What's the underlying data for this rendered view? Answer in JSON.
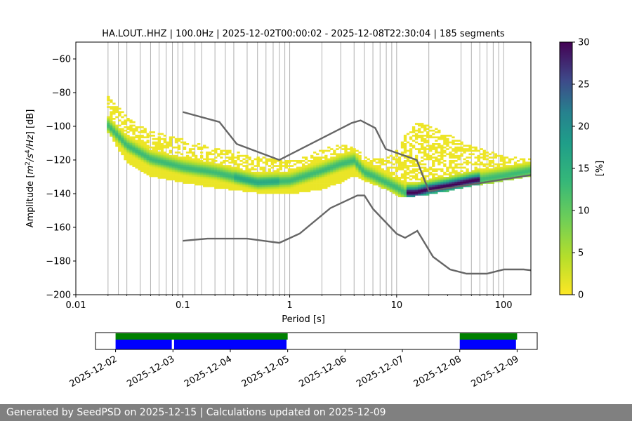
{
  "chart_data": {
    "type": "heatmap",
    "title": "HA.LOUT..HHZ | 100.0Hz | 2025-12-02T00:00:02 - 2025-12-08T22:30:04 | 185 segments",
    "xlabel": "Period [s]",
    "ylabel": "Amplitude [$m^2/s^4/Hz$] [dB]",
    "ylabel_parts": {
      "pre": "Amplitude [",
      "m": "m",
      "m_sup": "2",
      "s": "/s",
      "s_sup": "4",
      "hz": "/Hz",
      "post": "] [dB]"
    },
    "x_scale": "log",
    "xlim": [
      0.01,
      180
    ],
    "ylim": [
      -200,
      -50
    ],
    "x_tick_values": [
      0.01,
      0.1,
      1,
      10,
      100
    ],
    "x_tick_labels": [
      "0.01",
      "0.1",
      "1",
      "10",
      "100"
    ],
    "y_tick_values": [
      -200,
      -180,
      -160,
      -140,
      -120,
      -100,
      -80,
      -60
    ],
    "y_tick_labels": [
      "−200",
      "−180",
      "−160",
      "−140",
      "−120",
      "−100",
      "−80",
      "−60"
    ],
    "grid_periods": [
      0.02,
      0.025,
      0.03,
      0.04,
      0.05,
      0.06,
      0.07,
      0.08,
      0.09,
      0.1,
      0.13,
      0.15,
      0.2,
      0.25,
      0.3,
      0.4,
      0.5,
      0.6,
      0.7,
      0.8,
      0.9,
      1,
      2,
      3,
      4,
      5,
      6,
      7,
      8,
      9,
      10,
      20,
      40,
      50,
      60,
      70,
      80,
      90,
      100
    ],
    "colorbar": {
      "label": "[%]",
      "range": [
        0,
        30
      ],
      "ticks": [
        0,
        5,
        10,
        15,
        20,
        25,
        30
      ],
      "colormap": "viridis_r"
    },
    "band": {
      "period": [
        0.02,
        0.03,
        0.05,
        0.1,
        0.2,
        0.5,
        1,
        2,
        3,
        4,
        5,
        6,
        8,
        10,
        12,
        15,
        20,
        30,
        50,
        100,
        180
      ],
      "mode_db": [
        -100,
        -112,
        -120,
        -125,
        -128,
        -134,
        -133,
        -127,
        -123,
        -121,
        -128,
        -130,
        -134,
        -137,
        -140,
        -140,
        -138,
        -136,
        -133,
        -130,
        -127
      ],
      "lower_db": [
        -104,
        -122,
        -130,
        -134,
        -137,
        -140,
        -141,
        -138,
        -134,
        -130,
        -133,
        -135,
        -138,
        -142,
        -143,
        -142,
        -141,
        -139,
        -136,
        -133,
        -130
      ],
      "upper_db": [
        -82,
        -95,
        -103,
        -108,
        -113,
        -118,
        -121,
        -114,
        -110,
        -113,
        -118,
        -120,
        -120,
        -114,
        -105,
        -98,
        -100,
        -105,
        -112,
        -118,
        -120
      ]
    },
    "nhnm": {
      "period": [
        0.1,
        0.22,
        0.32,
        0.8,
        3.8,
        4.6,
        6.3,
        7.9,
        15.4,
        20,
        354.8
      ],
      "db": [
        -91.5,
        -97.4,
        -110.5,
        -120,
        -98,
        -96.5,
        -101,
        -113.5,
        -120,
        -138.5,
        -126
      ]
    },
    "nlnm": {
      "period": [
        0.1,
        0.17,
        0.4,
        0.8,
        1.24,
        2.4,
        4.3,
        5,
        6,
        10,
        12,
        15.6,
        21.9,
        31.6,
        45,
        70,
        101,
        154,
        180
      ],
      "db": [
        -168,
        -166.7,
        -166.7,
        -169.2,
        -163.7,
        -148.6,
        -141.1,
        -141.1,
        -149,
        -163.8,
        -166.2,
        -162.1,
        -177.5,
        -185,
        -187.5,
        -187.5,
        -185,
        -185,
        -185.5
      ]
    }
  },
  "timeline": {
    "dates": [
      "2025-12-02",
      "2025-12-03",
      "2025-12-04",
      "2025-12-05",
      "2025-12-06",
      "2025-12-07",
      "2025-12-08",
      "2025-12-09"
    ],
    "xlim_days": [
      -0.35,
      7.35
    ],
    "green_segments": [
      [
        0,
        3.0
      ],
      [
        6.0,
        7.0
      ]
    ],
    "blue_segments": [
      [
        0,
        0.98
      ],
      [
        1.02,
        2.98
      ],
      [
        6.0,
        6.98
      ]
    ],
    "colors": {
      "green": "#008000",
      "blue": "#0000ff"
    }
  },
  "footer": {
    "text": "Generated by SeedPSD on 2025-12-15 | Calculations updated on 2025-12-09"
  }
}
